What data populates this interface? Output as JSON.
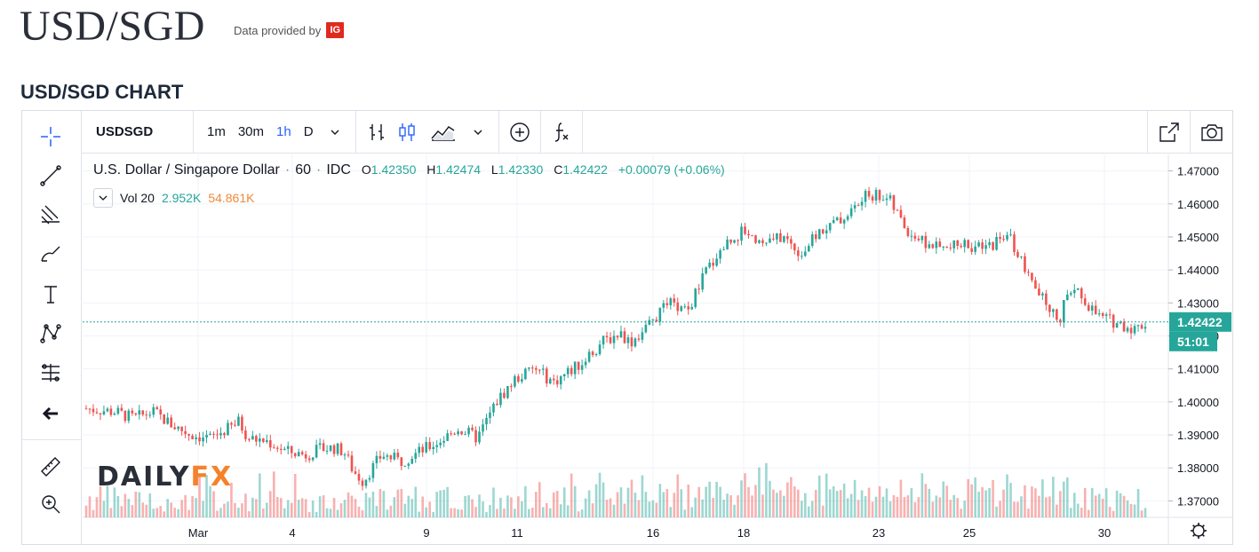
{
  "page": {
    "title": "USD/SGD",
    "provider_text": "Data provided by",
    "provider_logo": "IG",
    "section_title": "USD/SGD CHART"
  },
  "toolbar": {
    "symbol": "USDSGD",
    "timeframes": [
      "1m",
      "30m",
      "1h",
      "D"
    ],
    "active_timeframe": "1h",
    "icons": [
      "bar-type-icon",
      "candles-icon",
      "area-icon",
      "chevron-down-icon",
      "add-compare-icon",
      "indicators-icon",
      "fullscreen-icon",
      "snapshot-icon"
    ]
  },
  "left_tools": [
    "crosshair-icon",
    "trend-line-icon",
    "fib-icon",
    "brush-icon",
    "text-icon",
    "pattern-icon",
    "prediction-icon",
    "back-arrow-icon",
    "ruler-icon",
    "zoom-icon"
  ],
  "legend": {
    "name": "U.S. Dollar / Singapore Dollar",
    "interval": "60",
    "exchange": "IDC",
    "open_label": "O",
    "open": "1.42350",
    "high_label": "H",
    "high": "1.42474",
    "low_label": "L",
    "low": "1.42330",
    "close_label": "C",
    "close": "1.42422",
    "change": "+0.00079 (+0.06%)",
    "vol_label": "Vol 20",
    "vol_value": "2.952K",
    "vol_ma": "54.861K"
  },
  "watermark": {
    "part1": "DAILY",
    "part2": "FX"
  },
  "chart_data": {
    "type": "candlestick",
    "ylim": [
      1.365,
      1.475
    ],
    "y_ticks": [
      "1.47000",
      "1.46000",
      "1.45000",
      "1.44000",
      "1.43000",
      "1.42000",
      "1.41000",
      "1.40000",
      "1.39000",
      "1.38000",
      "1.37000"
    ],
    "x_tick_labels": [
      "Mar",
      "4",
      "9",
      "11",
      "16",
      "18",
      "23",
      "25",
      "30"
    ],
    "last_price": "1.42422",
    "countdown": "51:01",
    "up_color": "#26a69a",
    "down_color": "#ef5350",
    "trend": [
      [
        0,
        1.398
      ],
      [
        3,
        1.397
      ],
      [
        5,
        1.395
      ],
      [
        7,
        1.397
      ],
      [
        9,
        1.393
      ],
      [
        11,
        1.39
      ],
      [
        13,
        1.389
      ],
      [
        15,
        1.392
      ],
      [
        16,
        1.394
      ],
      [
        17,
        1.389
      ],
      [
        19,
        1.388
      ],
      [
        21,
        1.385
      ],
      [
        23,
        1.384
      ],
      [
        25,
        1.386
      ],
      [
        26,
        1.386
      ],
      [
        27,
        1.385
      ],
      [
        28,
        1.379
      ],
      [
        29,
        1.376
      ],
      [
        31,
        1.384
      ],
      [
        33,
        1.382
      ],
      [
        35,
        1.385
      ],
      [
        37,
        1.388
      ],
      [
        39,
        1.392
      ],
      [
        41,
        1.389
      ],
      [
        43,
        1.4
      ],
      [
        45,
        1.407
      ],
      [
        47,
        1.41
      ],
      [
        49,
        1.406
      ],
      [
        51,
        1.41
      ],
      [
        52,
        1.412
      ],
      [
        54,
        1.418
      ],
      [
        56,
        1.421
      ],
      [
        57,
        1.418
      ],
      [
        59,
        1.423
      ],
      [
        61,
        1.43
      ],
      [
        63,
        1.427
      ],
      [
        65,
        1.44
      ],
      [
        67,
        1.448
      ],
      [
        69,
        1.452
      ],
      [
        71,
        1.448
      ],
      [
        73,
        1.45
      ],
      [
        75,
        1.445
      ],
      [
        77,
        1.452
      ],
      [
        79,
        1.455
      ],
      [
        81,
        1.46
      ],
      [
        82,
        1.463
      ],
      [
        84,
        1.462
      ],
      [
        86,
        1.452
      ],
      [
        88,
        1.448
      ],
      [
        90,
        1.446
      ],
      [
        92,
        1.448
      ],
      [
        94,
        1.446
      ],
      [
        96,
        1.45
      ],
      [
        97,
        1.449
      ],
      [
        99,
        1.436
      ],
      [
        101,
        1.428
      ],
      [
        102,
        1.425
      ],
      [
        103,
        1.434
      ],
      [
        104,
        1.433
      ],
      [
        106,
        1.426
      ],
      [
        108,
        1.424
      ],
      [
        110,
        1.422
      ],
      [
        111,
        1.424
      ]
    ]
  }
}
